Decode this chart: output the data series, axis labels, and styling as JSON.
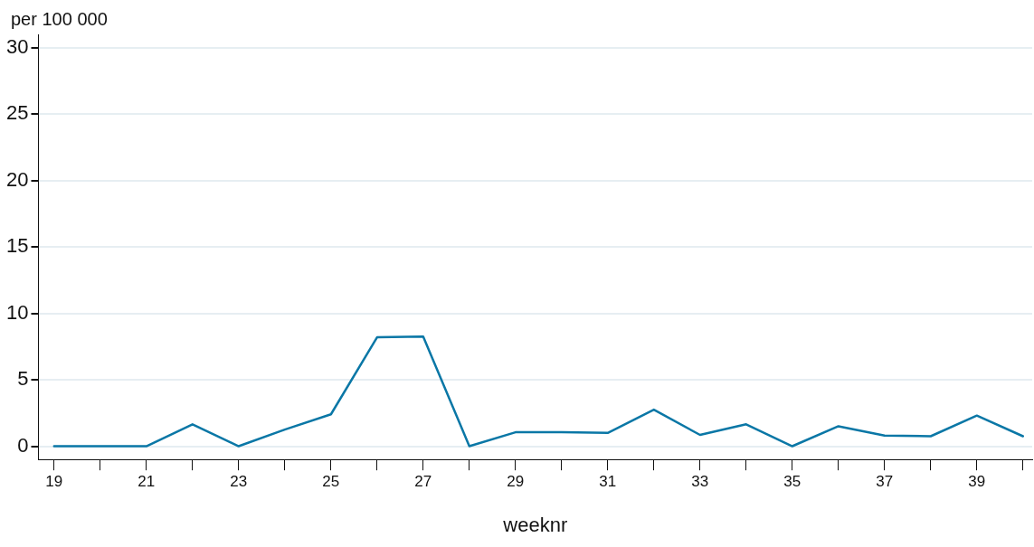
{
  "chart_data": {
    "type": "line",
    "ylabel": "per 100 000",
    "xlabel": "weeknr",
    "x": [
      19,
      20,
      21,
      22,
      23,
      24,
      25,
      26,
      27,
      28,
      29,
      30,
      31,
      32,
      33,
      34,
      35,
      36,
      37,
      38,
      39,
      40
    ],
    "series": [
      {
        "color": "#0a77a6",
        "values": [
          0,
          0,
          0,
          1.65,
          0,
          1.25,
          2.4,
          8.2,
          8.25,
          0,
          1.05,
          1.05,
          1.0,
          2.75,
          0.85,
          1.65,
          0,
          1.5,
          0.8,
          0.75,
          2.3,
          0.75
        ]
      }
    ],
    "xlim": [
      18.66,
      40.2
    ],
    "xticks": [
      19,
      {
        "value": 20,
        "label": null
      },
      21,
      {
        "value": 22,
        "label": null
      },
      23,
      {
        "value": 24,
        "label": null
      },
      25,
      {
        "value": 26,
        "label": null
      },
      27,
      {
        "value": 28,
        "label": null
      },
      29,
      {
        "value": 30,
        "label": null
      },
      31,
      {
        "value": 32,
        "label": null
      },
      33,
      {
        "value": 34,
        "label": null
      },
      35,
      {
        "value": 36,
        "label": null
      },
      37,
      {
        "value": 38,
        "label": null
      },
      39,
      {
        "value": 40,
        "label": null
      }
    ],
    "ylim": [
      -1,
      31
    ],
    "yticks": [
      0,
      5,
      10,
      15,
      20,
      25,
      30
    ],
    "grid": "y",
    "legend": false,
    "marker": "none",
    "line_style": "solid"
  }
}
